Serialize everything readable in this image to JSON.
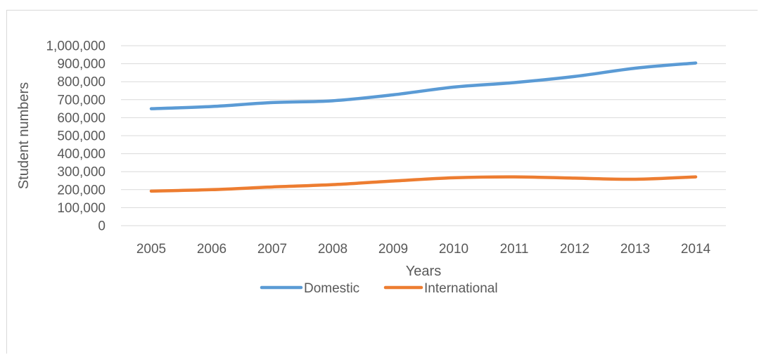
{
  "chart_data": {
    "type": "line",
    "title": "",
    "xlabel": "Years",
    "ylabel": "Student numbers",
    "ylim": [
      0,
      1000000
    ],
    "yticks": [
      0,
      100000,
      200000,
      300000,
      400000,
      500000,
      600000,
      700000,
      800000,
      900000,
      1000000
    ],
    "ytick_labels": [
      "0",
      "100,000",
      "200,000",
      "300,000",
      "400,000",
      "500,000",
      "600,000",
      "700,000",
      "800,000",
      "900,000",
      "1,000,000"
    ],
    "categories": [
      "2005",
      "2006",
      "2007",
      "2008",
      "2009",
      "2010",
      "2011",
      "2012",
      "2013",
      "2014"
    ],
    "series": [
      {
        "name": "Domestic",
        "color": "#5b9bd5",
        "values": [
          650000,
          662000,
          684000,
          694000,
          727000,
          770000,
          795000,
          829000,
          875000,
          904000
        ]
      },
      {
        "name": "International",
        "color": "#ed7d31",
        "values": [
          192000,
          200000,
          215000,
          228000,
          248000,
          266000,
          271000,
          264000,
          258000,
          271000
        ]
      }
    ],
    "grid": true,
    "legend_position": "bottom"
  }
}
